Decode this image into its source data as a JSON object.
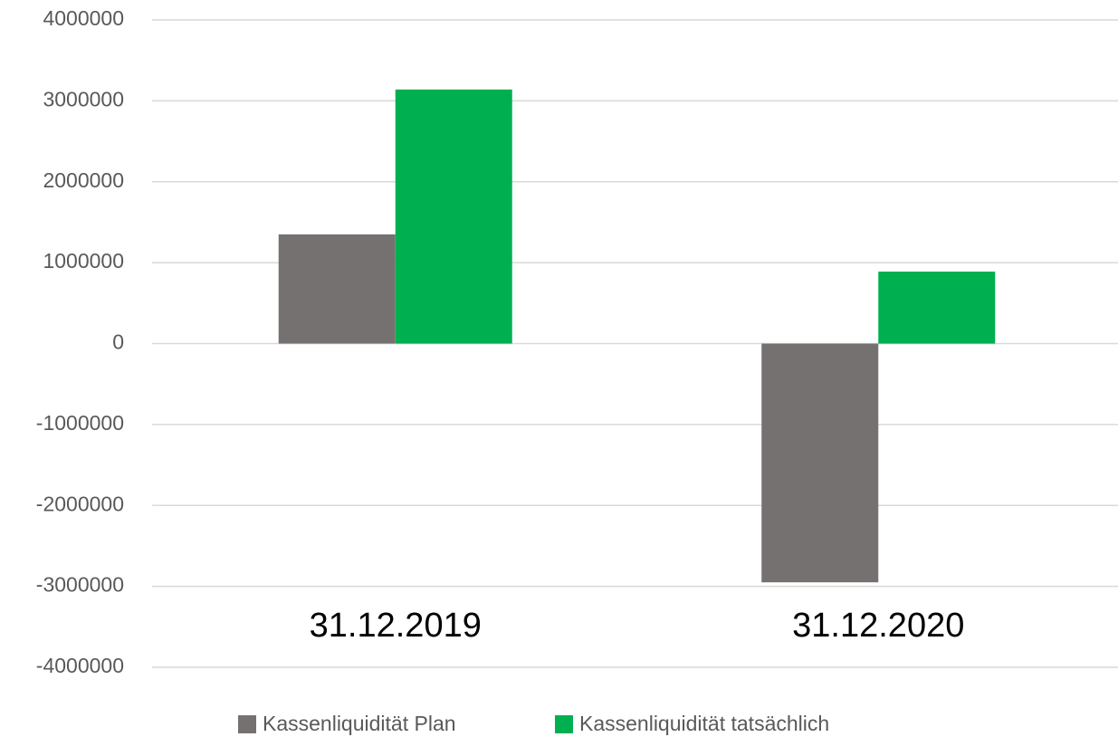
{
  "chart_data": {
    "type": "bar",
    "categories": [
      "31.12.2019",
      "31.12.2020"
    ],
    "series": [
      {
        "name": "Kassenliquidität Plan",
        "color": "#767171",
        "values": [
          1350000,
          -2950000
        ]
      },
      {
        "name": "Kassenliquidität tatsächlich",
        "color": "#00b050",
        "values": [
          3140000,
          890000
        ]
      }
    ],
    "ylim": [
      -4000000,
      4000000
    ],
    "yticks": [
      -4000000,
      -3000000,
      -2000000,
      -1000000,
      0,
      1000000,
      2000000,
      3000000,
      4000000
    ],
    "grid": true,
    "legend": "bottom"
  }
}
